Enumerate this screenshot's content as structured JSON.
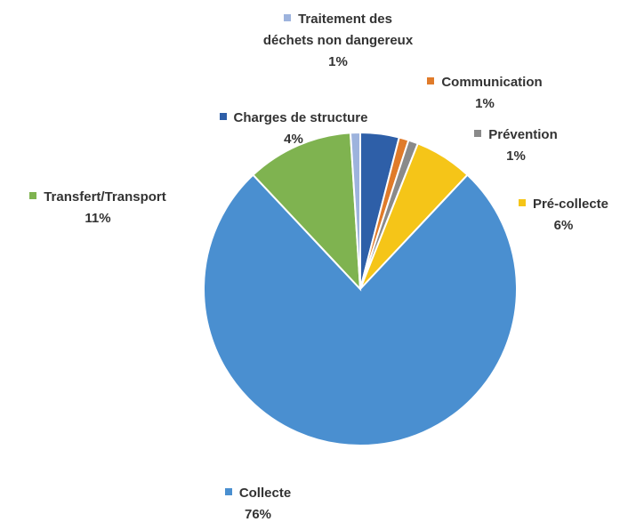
{
  "chart_data": {
    "type": "pie",
    "categories": [
      "Charges de structure",
      "Communication",
      "Prévention",
      "Pré-collecte",
      "Collecte",
      "Transfert/Transport",
      "Traitement des déchets non dangereux"
    ],
    "values": [
      4,
      1,
      1,
      6,
      76,
      11,
      1
    ],
    "value_labels": [
      "4%",
      "1%",
      "1%",
      "6%",
      "76%",
      "11%",
      "1%"
    ],
    "colors": [
      "#2e5fa8",
      "#e07b2a",
      "#8a8a8a",
      "#f5c518",
      "#4a8fd0",
      "#7fb350",
      "#9db3dd"
    ]
  }
}
